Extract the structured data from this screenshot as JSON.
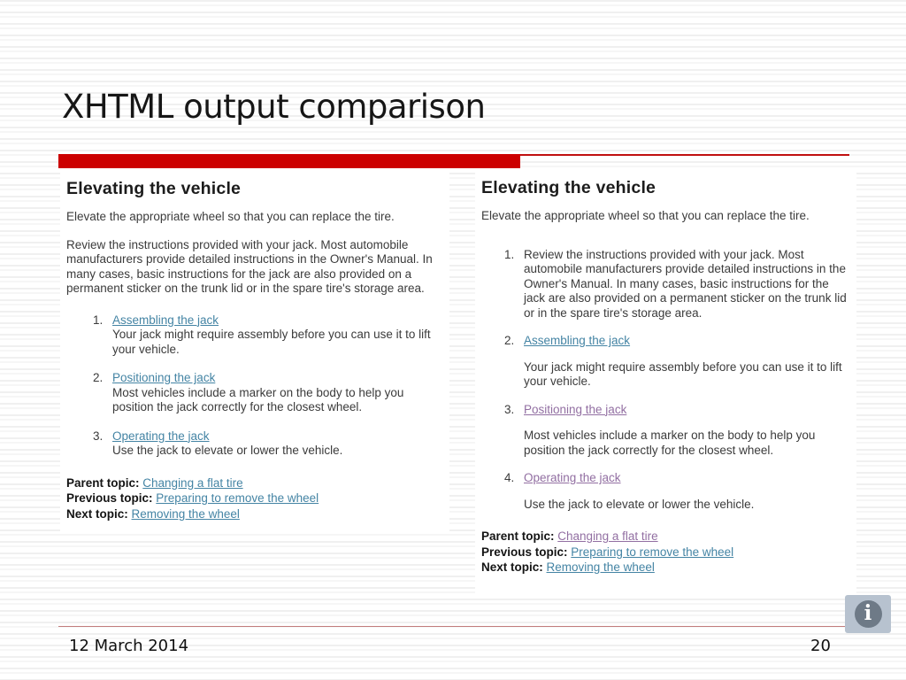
{
  "slide": {
    "title": "XHTML output comparison",
    "footer": {
      "date": "12 March 2014",
      "page": "20"
    }
  },
  "icons": {
    "info": "i"
  },
  "colors": {
    "accent_red": "#cc0000",
    "link_blue": "#4484a4",
    "link_visited": "#926fa2",
    "info_icon_bg": "#b7c2cf",
    "info_icon_circle": "#6e7a87"
  },
  "panels": [
    {
      "side": "left",
      "heading": "Elevating the vehicle",
      "intro": "Elevate the appropriate wheel so that you can replace the tire.",
      "lead": "Review the instructions provided with your jack. Most automobile manufacturers provide detailed instructions in the Owner's Manual. In many cases, basic instructions for the jack are also provided on a permanent sticker on the trunk lid or in the spare tire's storage area.",
      "steps": [
        {
          "num": "1.",
          "link": "Assembling the jack",
          "visited": false,
          "desc": "Your jack might require assembly before you can use it to lift your vehicle."
        },
        {
          "num": "2.",
          "link": "Positioning the jack",
          "visited": false,
          "desc": "Most vehicles include a marker on the body to help you position the jack correctly for the closest wheel."
        },
        {
          "num": "3.",
          "link": "Operating the jack",
          "visited": false,
          "desc": "Use the jack to elevate or lower the vehicle."
        }
      ],
      "topics": [
        {
          "label": "Parent topic:",
          "link": "Changing a flat tire",
          "visited": false
        },
        {
          "label": "Previous topic:",
          "link": "Preparing to remove the wheel",
          "visited": false
        },
        {
          "label": "Next topic:",
          "link": "Removing the wheel",
          "visited": false
        }
      ]
    },
    {
      "side": "right",
      "heading": "Elevating the vehicle",
      "intro": "Elevate the appropriate wheel so that you can replace the tire.",
      "steps": [
        {
          "num": "1.",
          "text": "Review the instructions provided with your jack. Most automobile manufacturers provide detailed instructions in the Owner's Manual. In many cases, basic instructions for the jack are also provided on a permanent sticker on the trunk lid or in the spare tire's storage area."
        },
        {
          "num": "2.",
          "link": "Assembling the jack",
          "visited": false,
          "desc": "Your jack might require assembly before you can use it to lift your vehicle."
        },
        {
          "num": "3.",
          "link": "Positioning the jack",
          "visited": true,
          "desc": "Most vehicles include a marker on the body to help you position the jack correctly for the closest wheel."
        },
        {
          "num": "4.",
          "link": "Operating the jack",
          "visited": true,
          "desc": "Use the jack to elevate or lower the vehicle."
        }
      ],
      "topics": [
        {
          "label": "Parent topic:",
          "link": "Changing a flat tire",
          "visited": true
        },
        {
          "label": "Previous topic:",
          "link": "Preparing to remove the wheel",
          "visited": false
        },
        {
          "label": "Next topic:",
          "link": "Removing the wheel",
          "visited": false
        }
      ]
    }
  ]
}
